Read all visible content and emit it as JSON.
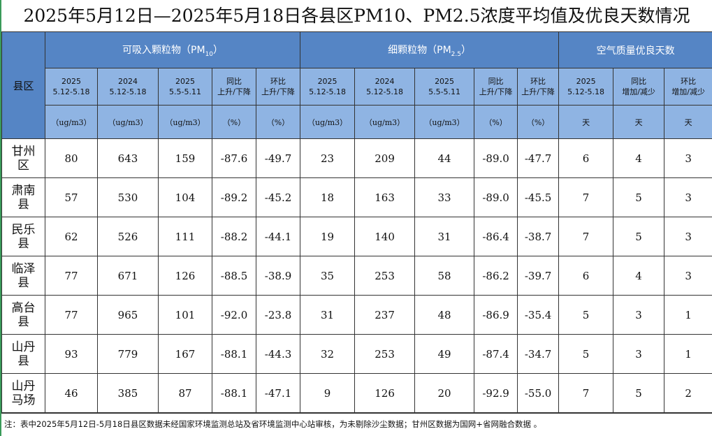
{
  "title": "2025年5月12日—2025年5月18日各县区PM10、PM2.5浓度平均值及优良天数情况",
  "table": {
    "corner": "县区",
    "groups": [
      {
        "main": "可吸入颗粒物（PM",
        "sub": "10",
        "end": "）"
      },
      {
        "main": "细颗粒物（PM",
        "sub": "2.5",
        "end": "）"
      },
      {
        "main": "空气质量优良天数",
        "sub": "",
        "end": ""
      }
    ],
    "columns": [
      {
        "line1": "2025",
        "line2": "5.12-5.18",
        "unit": "（ug/m3）"
      },
      {
        "line1": "2024",
        "line2": "5.12-5.18",
        "unit": "（ug/m3）"
      },
      {
        "line1": "2025",
        "line2": "5.5-5.11",
        "unit": "（ug/m3）"
      },
      {
        "line1": "同比",
        "line2": "上升/下降",
        "unit": "（%）"
      },
      {
        "line1": "环比",
        "line2": "上升/下降",
        "unit": "（%）"
      },
      {
        "line1": "2025",
        "line2": "5.12-5.18",
        "unit": "（ug/m3）"
      },
      {
        "line1": "2024",
        "line2": "5.12-5.18",
        "unit": "（ug/m3）"
      },
      {
        "line1": "2025",
        "line2": "5.5-5.11",
        "unit": "（ug/m3）"
      },
      {
        "line1": "同比",
        "line2": "上升/下降",
        "unit": "（%）"
      },
      {
        "line1": "环比",
        "line2": "上升/下降",
        "unit": "（%）"
      },
      {
        "line1": "2025",
        "line2": "5.12-5.18",
        "unit": "天"
      },
      {
        "line1": "同比",
        "line2": "增加/减少",
        "unit": "天"
      },
      {
        "line1": "环比",
        "line2": "增加/减少",
        "unit": "天"
      }
    ],
    "rows": [
      [
        "甘州区",
        "80",
        "643",
        "159",
        "-87.6",
        "-49.7",
        "23",
        "209",
        "44",
        "-89.0",
        "-47.7",
        "6",
        "4",
        "3"
      ],
      [
        "肃南县",
        "57",
        "530",
        "104",
        "-89.2",
        "-45.2",
        "18",
        "163",
        "33",
        "-89.0",
        "-45.5",
        "7",
        "5",
        "3"
      ],
      [
        "民乐县",
        "62",
        "526",
        "111",
        "-88.2",
        "-44.1",
        "19",
        "140",
        "31",
        "-86.4",
        "-38.7",
        "7",
        "5",
        "3"
      ],
      [
        "临泽县",
        "77",
        "671",
        "126",
        "-88.5",
        "-38.9",
        "35",
        "253",
        "58",
        "-86.2",
        "-39.7",
        "6",
        "4",
        "3"
      ],
      [
        "高台县",
        "77",
        "965",
        "101",
        "-92.0",
        "-23.8",
        "31",
        "237",
        "48",
        "-86.9",
        "-35.4",
        "5",
        "3",
        "1"
      ],
      [
        "山丹县",
        "93",
        "779",
        "167",
        "-88.1",
        "-44.3",
        "32",
        "253",
        "49",
        "-87.4",
        "-34.7",
        "5",
        "3",
        "1"
      ],
      [
        "山丹马场",
        "46",
        "385",
        "87",
        "-88.1",
        "-47.1",
        "9",
        "126",
        "20",
        "-92.9",
        "-55.0",
        "7",
        "5",
        "2"
      ]
    ]
  },
  "note": "注：表中2025年5月12日-5月18日县区数据未经国家环境监测总站及省环境监测中心站审核，为未剔除沙尘数据；甘州区数据为国网+省网融合数据 。"
}
